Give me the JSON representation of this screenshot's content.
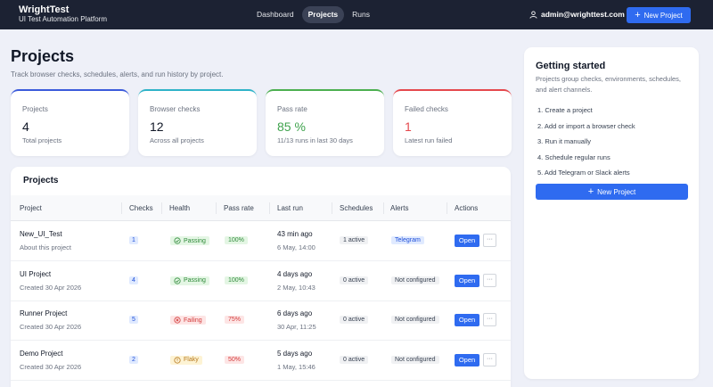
{
  "brand": {
    "name": "WrightTest",
    "subtitle": "UI Test Automation Platform"
  },
  "nav": [
    {
      "label": "Dashboard",
      "active": false
    },
    {
      "label": "Projects",
      "active": true
    },
    {
      "label": "Runs",
      "active": false
    }
  ],
  "user": {
    "email": "admin@wrighttest.com",
    "icon": "user-icon"
  },
  "header": {
    "new_project_label": "New Project"
  },
  "page": {
    "title": "Projects",
    "description": "Track browser checks, schedules, alerts, and run history by project."
  },
  "stats": [
    {
      "label": "Projects",
      "value": "4",
      "sub": "Total projects",
      "accent": "#3b5bdb",
      "value_color": "#111827"
    },
    {
      "label": "Browser checks",
      "value": "12",
      "sub": "Across all projects",
      "accent": "#2fb3c8",
      "value_color": "#111827"
    },
    {
      "label": "Pass rate",
      "value": "85 %",
      "sub": "11/13 runs in last 30 days",
      "accent": "#4caf50",
      "value_color": "#3fa34d"
    },
    {
      "label": "Failed checks",
      "value": "1",
      "sub": "Latest run failed",
      "accent": "#e5484d",
      "value_color": "#e5484d"
    }
  ],
  "table": {
    "title": "Projects",
    "columns": [
      "Project",
      "Checks",
      "Health",
      "Pass rate",
      "Last run",
      "Schedules",
      "Alerts",
      "Actions"
    ],
    "rows": [
      {
        "name": "New_UI_Test",
        "sub": "About this project",
        "checks": "1",
        "health": "Passing",
        "health_kind": "pass",
        "pass_rate": "100%",
        "rate_kind": "pass",
        "last_run": "43 min ago",
        "last_run_date": "6 May, 14:00",
        "schedules": "1 active",
        "alerts": "Telegram",
        "alert_kind": "set",
        "open": "Open",
        "more": "···"
      },
      {
        "name": "UI Project",
        "sub": "Created 30 Apr 2026",
        "checks": "4",
        "health": "Passing",
        "health_kind": "pass",
        "pass_rate": "100%",
        "rate_kind": "pass",
        "last_run": "4 days ago",
        "last_run_date": "2 May, 10:43",
        "schedules": "0 active",
        "alerts": "Not configured",
        "alert_kind": "none",
        "open": "Open",
        "more": "···"
      },
      {
        "name": "Runner Project",
        "sub": "Created 30 Apr 2026",
        "checks": "5",
        "health": "Failing",
        "health_kind": "fail",
        "pass_rate": "75%",
        "rate_kind": "fail",
        "last_run": "6 days ago",
        "last_run_date": "30 Apr, 11:25",
        "schedules": "0 active",
        "alerts": "Not configured",
        "alert_kind": "none",
        "open": "Open",
        "more": "···"
      },
      {
        "name": "Demo Project",
        "sub": "Created 30 Apr 2026",
        "checks": "2",
        "health": "Flaky",
        "health_kind": "flaky",
        "pass_rate": "50%",
        "rate_kind": "fail",
        "last_run": "5 days ago",
        "last_run_date": "1 May, 15:46",
        "schedules": "0 active",
        "alerts": "Not configured",
        "alert_kind": "none",
        "open": "Open",
        "more": "···"
      }
    ]
  },
  "getting_started": {
    "title": "Getting started",
    "description": "Projects group checks, environments, schedules, and alert channels.",
    "steps": [
      "1. Create a project",
      "2. Add or import a browser check",
      "3. Run it manually",
      "4. Schedule regular runs",
      "5. Add Telegram or Slack alerts"
    ],
    "button_label": "New Project"
  },
  "colors": {
    "topbar": "#1c2233",
    "primary": "#2f6bf0",
    "pass_bg": "#e4f6e4",
    "pass_fg": "#2f8a3a",
    "fail_bg": "#fde5e5",
    "fail_fg": "#d33b3b",
    "flaky_bg": "#fdf3d4",
    "flaky_fg": "#b7791f"
  }
}
